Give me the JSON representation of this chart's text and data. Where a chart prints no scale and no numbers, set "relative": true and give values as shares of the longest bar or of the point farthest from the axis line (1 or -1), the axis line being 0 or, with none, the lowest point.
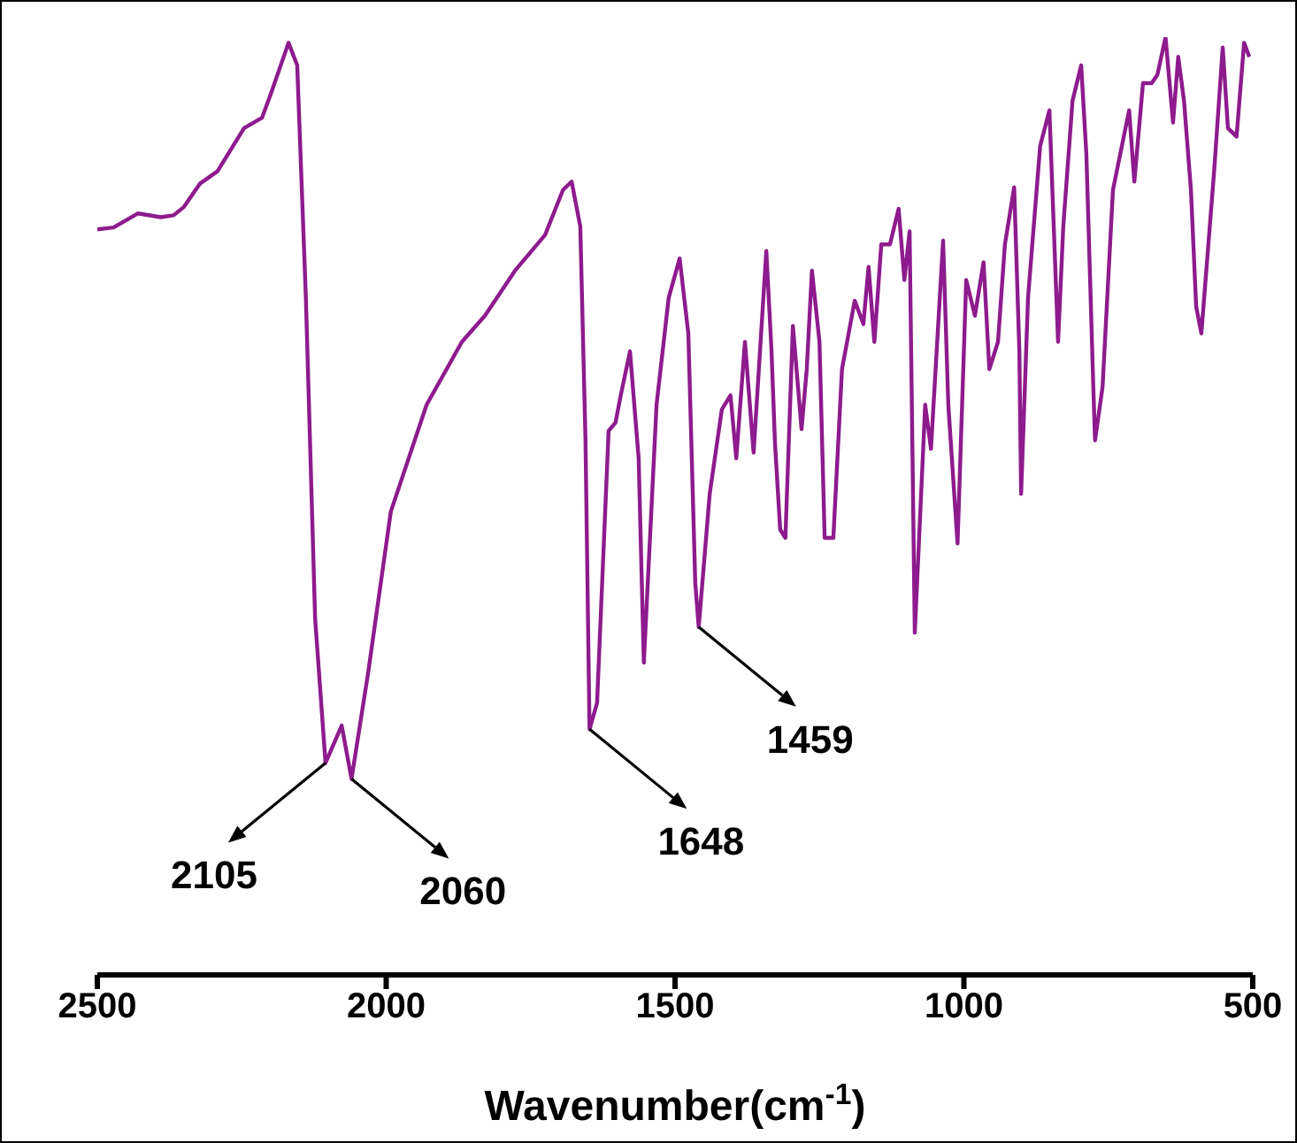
{
  "chart_data": {
    "type": "line",
    "xlabel": "Wavenumber(cm$^{-1}$)",
    "relative": true,
    "color": "#8e1b8e",
    "xlim": [
      2500,
      500
    ],
    "xticks": [
      2500,
      2000,
      1500,
      1000,
      500
    ],
    "x": [
      2500,
      2472,
      2430,
      2390,
      2368,
      2350,
      2322,
      2292,
      2246,
      2215,
      2200,
      2169,
      2154,
      2139,
      2123,
      2105,
      2077,
      2060,
      2031,
      1992,
      1930,
      1869,
      1829,
      1777,
      1725,
      1694,
      1679,
      1664,
      1655,
      1648,
      1635,
      1615,
      1603,
      1594,
      1578,
      1563,
      1554,
      1532,
      1511,
      1492,
      1477,
      1465,
      1459,
      1440,
      1419,
      1404,
      1394,
      1379,
      1364,
      1342,
      1333,
      1327,
      1318,
      1309,
      1296,
      1281,
      1272,
      1263,
      1250,
      1241,
      1226,
      1211,
      1189,
      1174,
      1165,
      1155,
      1143,
      1128,
      1113,
      1103,
      1094,
      1085,
      1067,
      1057,
      1036,
      1027,
      1011,
      996,
      981,
      966,
      956,
      941,
      929,
      913,
      904,
      901,
      889,
      868,
      852,
      837,
      828,
      812,
      797,
      788,
      776,
      773,
      760,
      742,
      714,
      705,
      690,
      675,
      665,
      651,
      638,
      629,
      619,
      607,
      598,
      589,
      567,
      552,
      543,
      528,
      515,
      506
    ],
    "values": [
      0.795,
      0.797,
      0.812,
      0.808,
      0.81,
      0.819,
      0.844,
      0.857,
      0.903,
      0.914,
      0.939,
      0.994,
      0.97,
      0.722,
      0.38,
      0.226,
      0.266,
      0.209,
      0.323,
      0.494,
      0.608,
      0.675,
      0.703,
      0.751,
      0.789,
      0.837,
      0.846,
      0.798,
      0.57,
      0.262,
      0.29,
      0.58,
      0.589,
      0.618,
      0.665,
      0.551,
      0.333,
      0.608,
      0.722,
      0.764,
      0.684,
      0.418,
      0.371,
      0.513,
      0.603,
      0.618,
      0.551,
      0.675,
      0.557,
      0.772,
      0.665,
      0.567,
      0.475,
      0.466,
      0.692,
      0.582,
      0.646,
      0.751,
      0.675,
      0.466,
      0.466,
      0.646,
      0.719,
      0.694,
      0.755,
      0.675,
      0.779,
      0.779,
      0.817,
      0.741,
      0.793,
      0.365,
      0.608,
      0.561,
      0.783,
      0.608,
      0.46,
      0.741,
      0.703,
      0.76,
      0.646,
      0.675,
      0.779,
      0.84,
      0.665,
      0.513,
      0.722,
      0.884,
      0.922,
      0.675,
      0.798,
      0.932,
      0.97,
      0.875,
      0.627,
      0.57,
      0.627,
      0.837,
      0.922,
      0.846,
      0.951,
      0.951,
      0.96,
      1,
      0.909,
      0.979,
      0.932,
      0.837,
      0.713,
      0.684,
      0.856,
      0.989,
      0.903,
      0.894,
      0.994,
      0.979
    ],
    "annotations": [
      {
        "text": "2105",
        "x": 2105,
        "y": 0.226
      },
      {
        "text": "2060",
        "x": 2060,
        "y": 0.209
      },
      {
        "text": "1648",
        "x": 1648,
        "y": 0.262
      },
      {
        "text": "1459",
        "x": 1459,
        "y": 0.371
      }
    ]
  }
}
